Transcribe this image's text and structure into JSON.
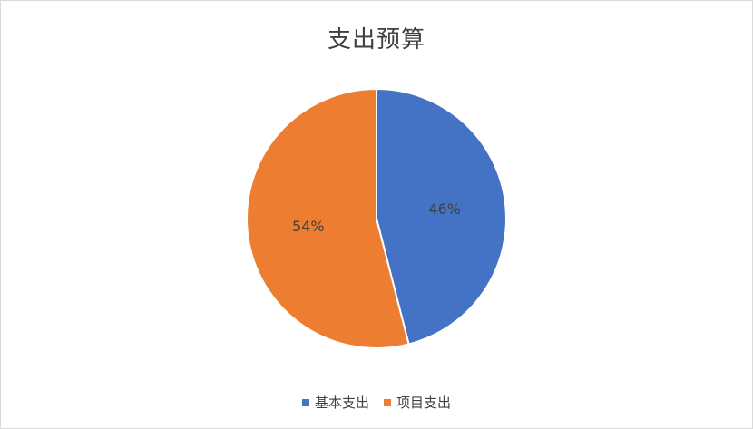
{
  "chart_data": {
    "type": "pie",
    "title": "支出预算",
    "categories": [
      "基本支出",
      "项目支出"
    ],
    "values": [
      46,
      54
    ],
    "labels": [
      "46%",
      "54%"
    ],
    "colors": [
      "#4472c4",
      "#ed7d31"
    ],
    "legend_position": "bottom",
    "start_angle": "12 o'clock, clockwise"
  }
}
